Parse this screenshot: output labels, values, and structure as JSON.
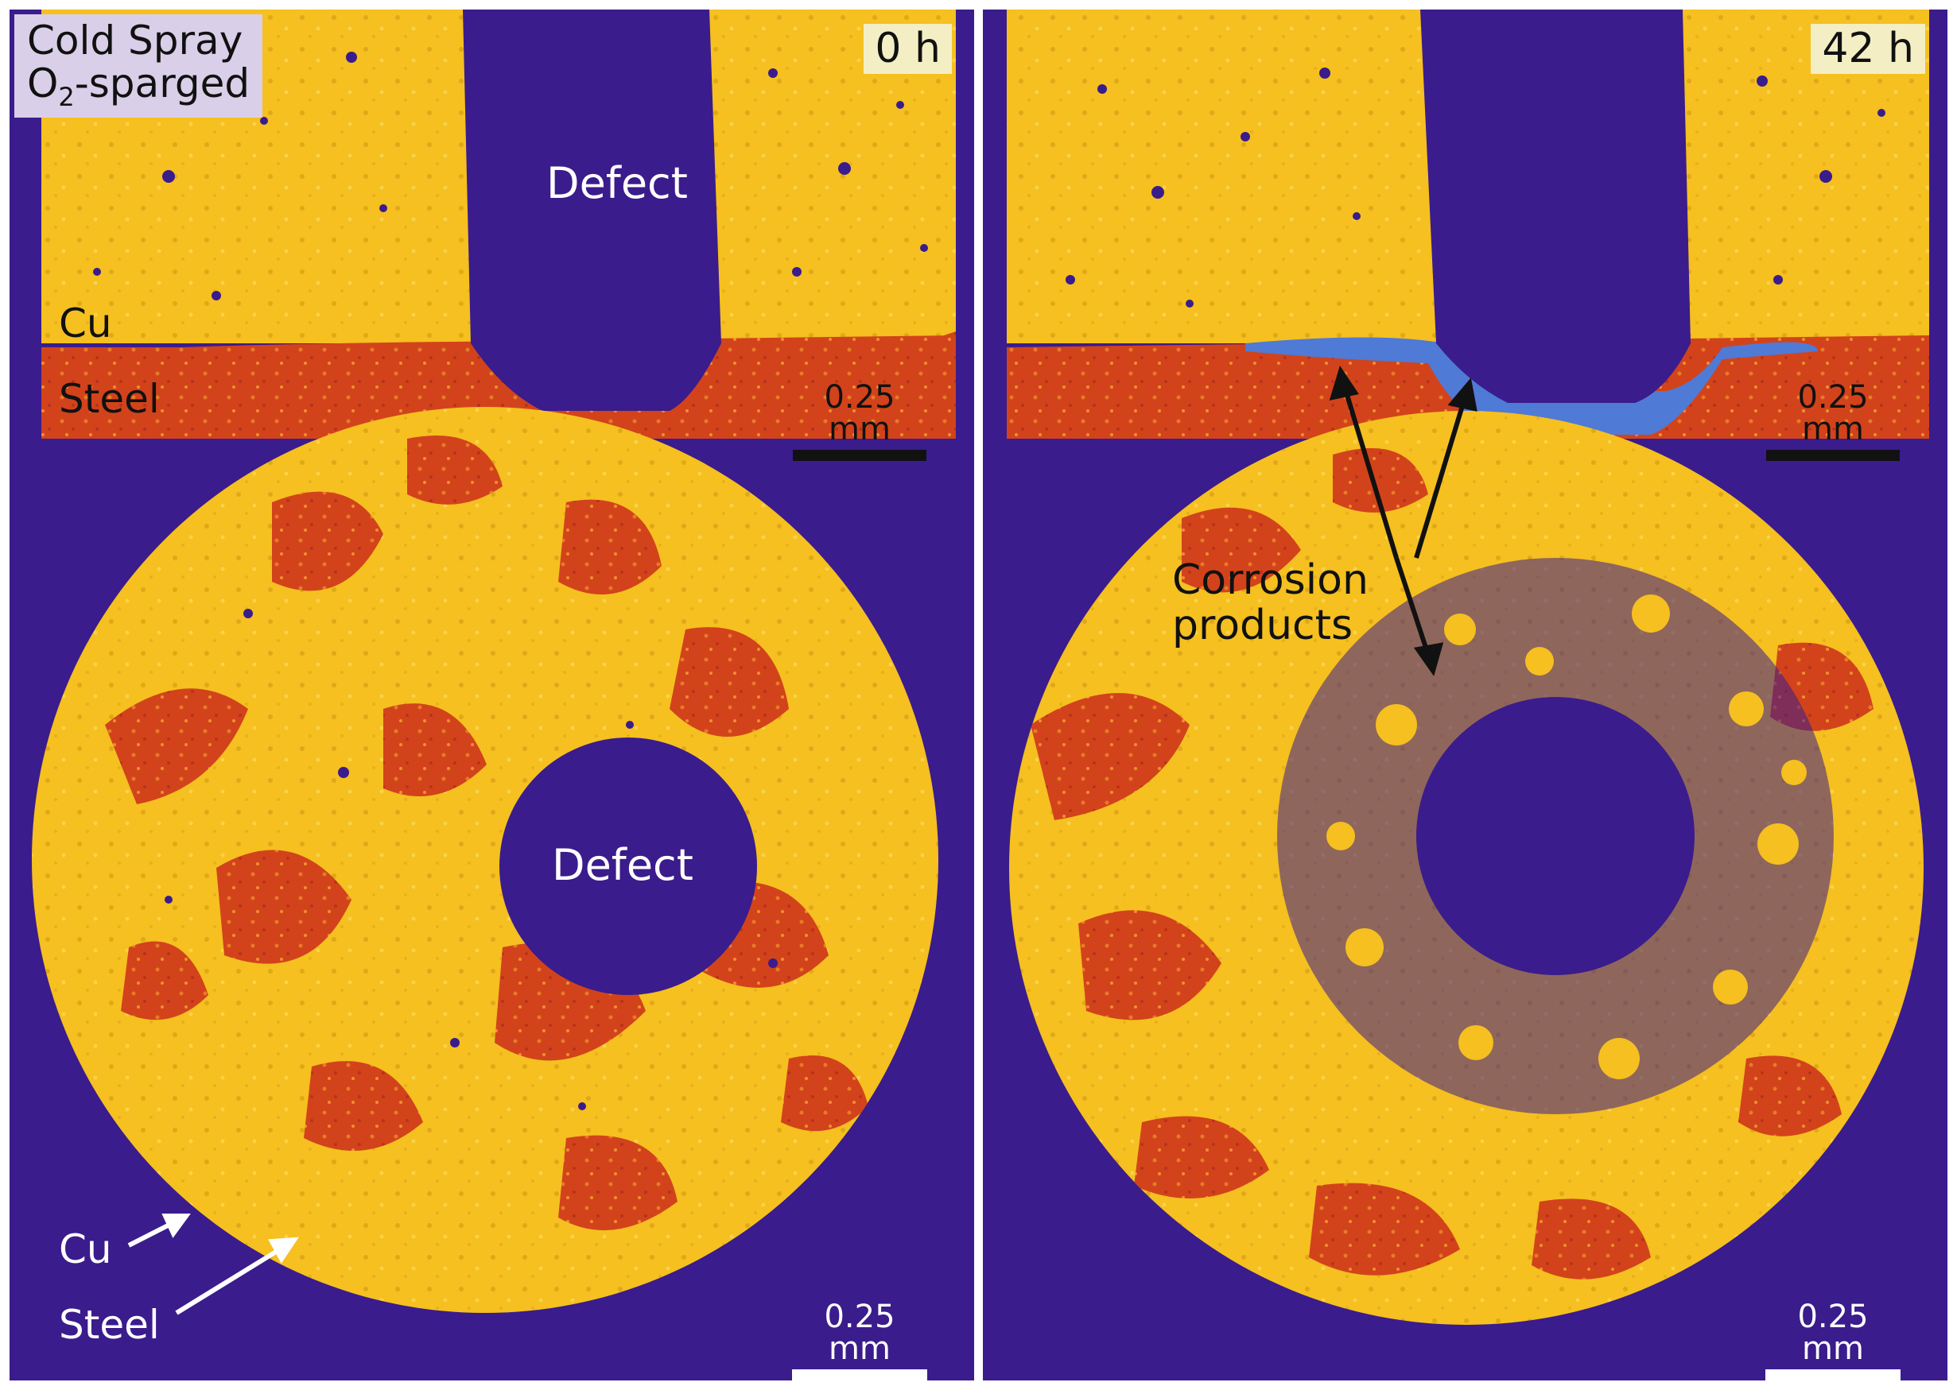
{
  "left_panel": {
    "title_line1": "Cold Spray",
    "title_line2_prefix": "O",
    "title_line2_sub": "2",
    "title_line2_suffix": "-sparged",
    "time": "0 h",
    "defect_top": "Defect",
    "defect_bottom": "Defect",
    "cu_top": "Cu",
    "steel_top": "Steel",
    "cu_bottom": "Cu",
    "steel_bottom": "Steel",
    "scale_top": "0.25 mm",
    "scale_bottom": "0.25 mm"
  },
  "right_panel": {
    "time": "42 h",
    "corrosion_line1": "Corrosion",
    "corrosion_line2": "products",
    "scale_top": "0.25 mm",
    "scale_bottom": "0.25 mm"
  },
  "colors": {
    "background_void": "#3a1c8c",
    "copper": "#f5c020",
    "steel": "#d2431b",
    "corrosion_products": "#4f7ad6"
  }
}
